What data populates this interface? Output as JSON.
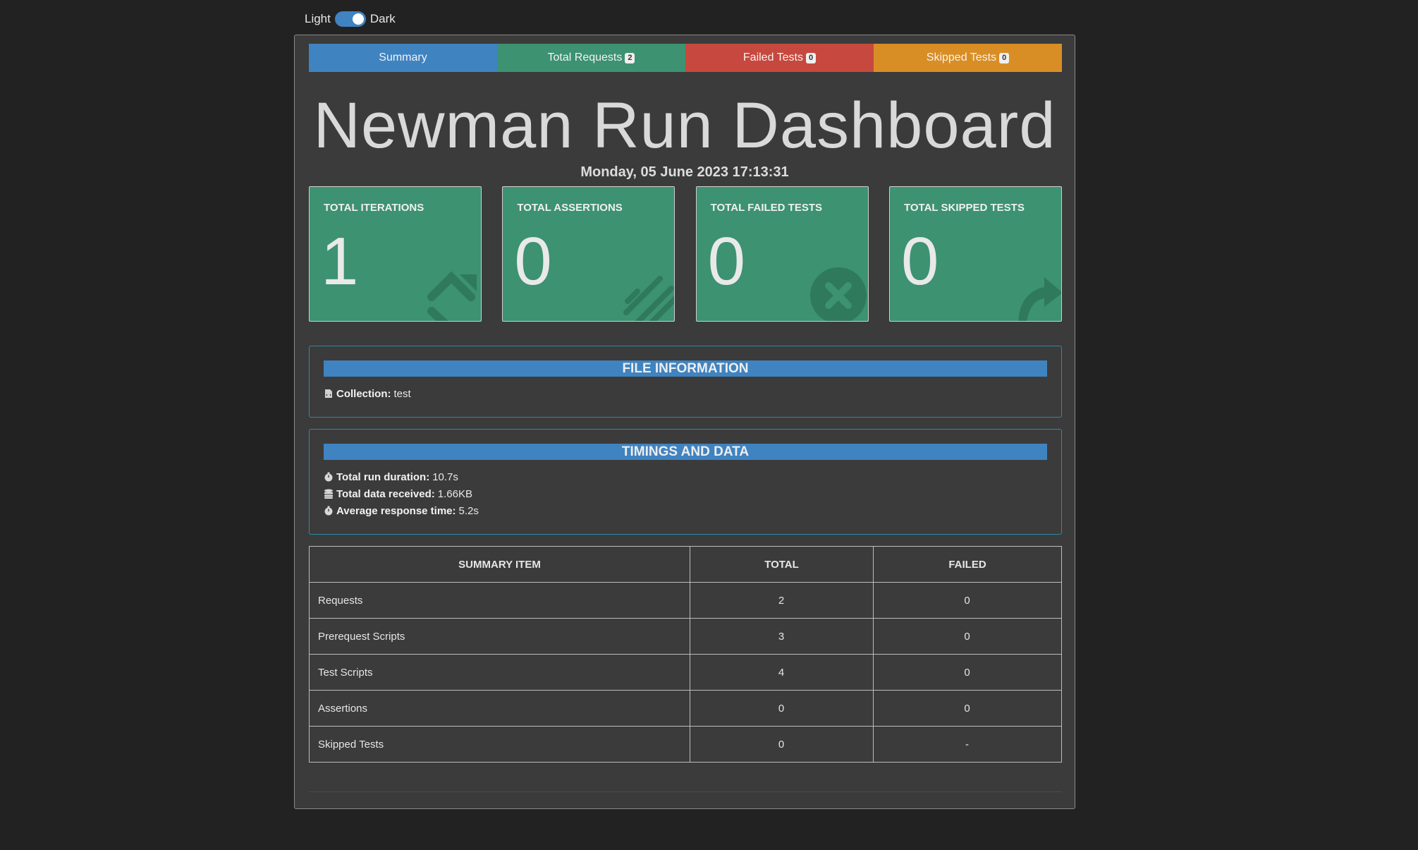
{
  "theme_toggle": {
    "light_label": "Light",
    "dark_label": "Dark"
  },
  "tabs": [
    {
      "label": "Summary",
      "badge": "",
      "color": "#3f83c1"
    },
    {
      "label": "Total Requests",
      "badge": "2",
      "color": "#3c9271"
    },
    {
      "label": "Failed Tests",
      "badge": "0",
      "color": "#c6483e"
    },
    {
      "label": "Skipped Tests",
      "badge": "0",
      "color": "#d98e25"
    }
  ],
  "header": {
    "title": "Newman Run Dashboard",
    "date": "Monday, 05 June 2023 17:13:31"
  },
  "stat_cards": [
    {
      "label": "TOTAL ITERATIONS",
      "value": "1",
      "icon": "sync-icon"
    },
    {
      "label": "TOTAL ASSERTIONS",
      "value": "0",
      "icon": "pen-icon"
    },
    {
      "label": "TOTAL FAILED TESTS",
      "value": "0",
      "icon": "times-circle-icon"
    },
    {
      "label": "TOTAL SKIPPED TESTS",
      "value": "0",
      "icon": "share-arrow-icon"
    }
  ],
  "file_info": {
    "heading": "FILE INFORMATION",
    "collection_label": "Collection:",
    "collection_value": "test"
  },
  "timings": {
    "heading": "TIMINGS AND DATA",
    "rows": [
      {
        "label": "Total run duration:",
        "value": "10.7s",
        "icon": "stopwatch-icon"
      },
      {
        "label": "Total data received:",
        "value": "1.66KB",
        "icon": "database-icon"
      },
      {
        "label": "Average response time:",
        "value": "5.2s",
        "icon": "stopwatch-icon"
      }
    ]
  },
  "summary_table": {
    "headers": [
      "SUMMARY ITEM",
      "TOTAL",
      "FAILED"
    ],
    "rows": [
      [
        "Requests",
        "2",
        "0"
      ],
      [
        "Prerequest Scripts",
        "3",
        "0"
      ],
      [
        "Test Scripts",
        "4",
        "0"
      ],
      [
        "Assertions",
        "0",
        "0"
      ],
      [
        "Skipped Tests",
        "0",
        "-"
      ]
    ]
  },
  "colors": {
    "background": "#222222",
    "container": "#3b3b3b",
    "card": "#3c9271",
    "panel_header": "#3f83c1"
  }
}
